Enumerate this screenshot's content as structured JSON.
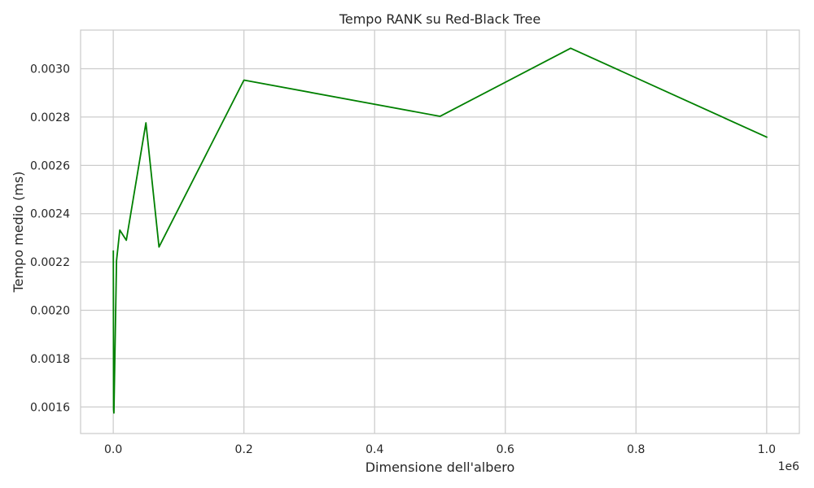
{
  "chart_data": {
    "type": "line",
    "title": "Tempo RANK su Red-Black Tree",
    "xlabel": "Dimensione dell'albero",
    "ylabel": "Tempo medio (ms)",
    "x_offset_text": "1e6",
    "xlim": [
      -50000,
      1050000
    ],
    "ylim": [
      0.00149,
      0.00316
    ],
    "x_ticks": [
      0,
      200000,
      400000,
      600000,
      800000,
      1000000
    ],
    "x_tick_labels": [
      "0.0",
      "0.2",
      "0.4",
      "0.6",
      "0.8",
      "1.0"
    ],
    "y_ticks": [
      0.0016,
      0.0018,
      0.002,
      0.0022,
      0.0024,
      0.0026,
      0.0028,
      0.003
    ],
    "y_tick_labels": [
      "0.0016",
      "0.0018",
      "0.0020",
      "0.0022",
      "0.0024",
      "0.0026",
      "0.0028",
      "0.0030"
    ],
    "grid": true,
    "series": [
      {
        "color": "#008000",
        "x": [
          100,
          500,
          1000,
          5000,
          10000,
          20000,
          50000,
          70000,
          200000,
          500000,
          700000,
          1000000
        ],
        "y": [
          0.002245,
          0.00159,
          0.001575,
          0.002205,
          0.002332,
          0.00229,
          0.002776,
          0.002262,
          0.002953,
          0.002803,
          0.003085,
          0.002717
        ]
      }
    ]
  }
}
